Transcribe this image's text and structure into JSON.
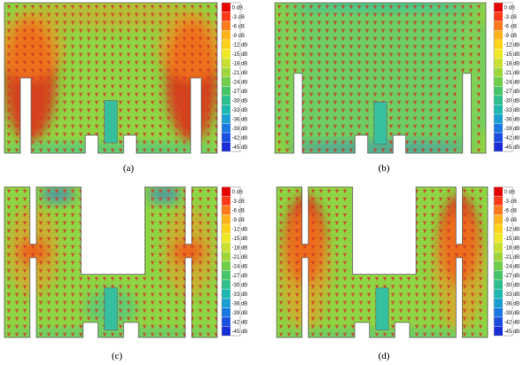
{
  "figure": {
    "panels": [
      {
        "id": "a",
        "caption": "(a)",
        "shape": "A",
        "field": "strong"
      },
      {
        "id": "b",
        "caption": "(b)",
        "shape": "B",
        "field": "weak"
      },
      {
        "id": "c",
        "caption": "(c)",
        "shape": "C",
        "field": "mid"
      },
      {
        "id": "d",
        "caption": "(d)",
        "shape": "C",
        "field": "strongC"
      }
    ],
    "colorbar": {
      "ticks": [
        "0 dB",
        "-3 dB",
        "-6 dB",
        "-9 dB",
        "-12 dB",
        "-15 dB",
        "-18 dB",
        "-21 dB",
        "-24 dB",
        "-27 dB",
        "-30 dB",
        "-33 dB",
        "-36 dB",
        "-39 dB",
        "-42 dB",
        "-45 dB"
      ],
      "colors": [
        "#e60000",
        "#ff3b1a",
        "#ff7a1a",
        "#ffb31a",
        "#ffd21a",
        "#f0e826",
        "#c8e030",
        "#9ed63a",
        "#6fcd4a",
        "#48c468",
        "#2fbf8c",
        "#20b7b0",
        "#1a9fd0",
        "#1a78e0",
        "#1a4fe0",
        "#1a2ed8"
      ]
    },
    "colors": {
      "arrow": "#d23a2a",
      "hot": "#e12a14",
      "warm": "#ff8f1e",
      "green": "#8fd444",
      "teal": "#36c0a0",
      "blue": "#2a78d8",
      "outline": "#666666"
    }
  }
}
